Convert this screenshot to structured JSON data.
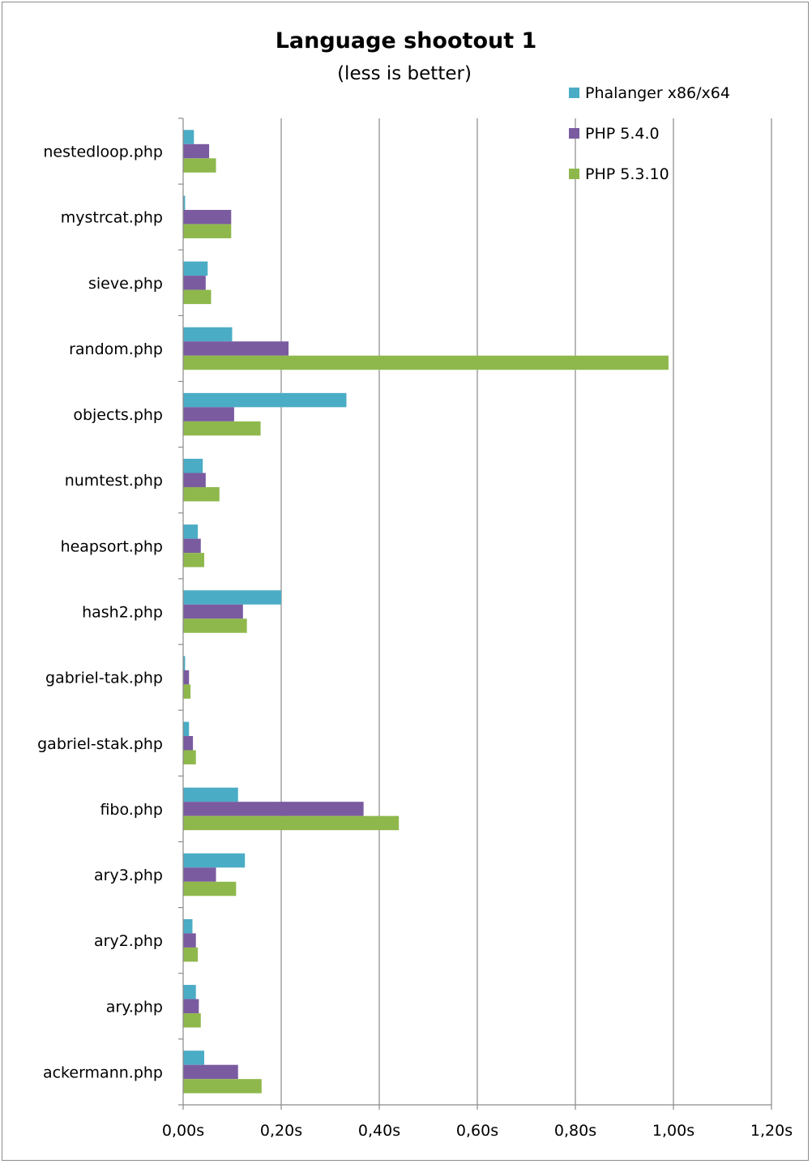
{
  "chart_data": {
    "type": "bar",
    "orientation": "horizontal",
    "title": "Language shootout 1",
    "subtitle": "(less is better)",
    "xlim": [
      0,
      1.2
    ],
    "ticks": [
      0,
      0.2,
      0.4,
      0.6,
      0.8,
      1.0,
      1.2
    ],
    "tick_labels": [
      "0,00s",
      "0,20s",
      "0,40s",
      "0,60s",
      "0,80s",
      "1,00s",
      "1,20s"
    ],
    "grid": "vertical major",
    "legend_position": "top-right",
    "categories": [
      "nestedloop.php",
      "mystrcat.php",
      "sieve.php",
      "random.php",
      "objects.php",
      "numtest.php",
      "heapsort.php",
      "hash2.php",
      "gabriel-tak.php",
      "gabriel-stak.php",
      "fibo.php",
      "ary3.php",
      "ary2.php",
      "ary.php",
      "ackermann.php"
    ],
    "series": [
      {
        "name": "Phalanger x86/x64",
        "color": "#4bacc6",
        "values": [
          0.022,
          0.004,
          0.05,
          0.1,
          0.333,
          0.04,
          0.03,
          0.2,
          0.004,
          0.012,
          0.112,
          0.126,
          0.019,
          0.026,
          0.043
        ]
      },
      {
        "name": "PHP 5.4.0",
        "color": "#7a5ba0",
        "values": [
          0.053,
          0.098,
          0.046,
          0.215,
          0.104,
          0.046,
          0.036,
          0.122,
          0.012,
          0.02,
          0.368,
          0.067,
          0.026,
          0.032,
          0.112
        ]
      },
      {
        "name": "PHP 5.3.10",
        "color": "#8fb84c",
        "values": [
          0.067,
          0.098,
          0.057,
          0.99,
          0.158,
          0.074,
          0.043,
          0.13,
          0.015,
          0.026,
          0.44,
          0.108,
          0.03,
          0.036,
          0.16
        ]
      }
    ]
  }
}
